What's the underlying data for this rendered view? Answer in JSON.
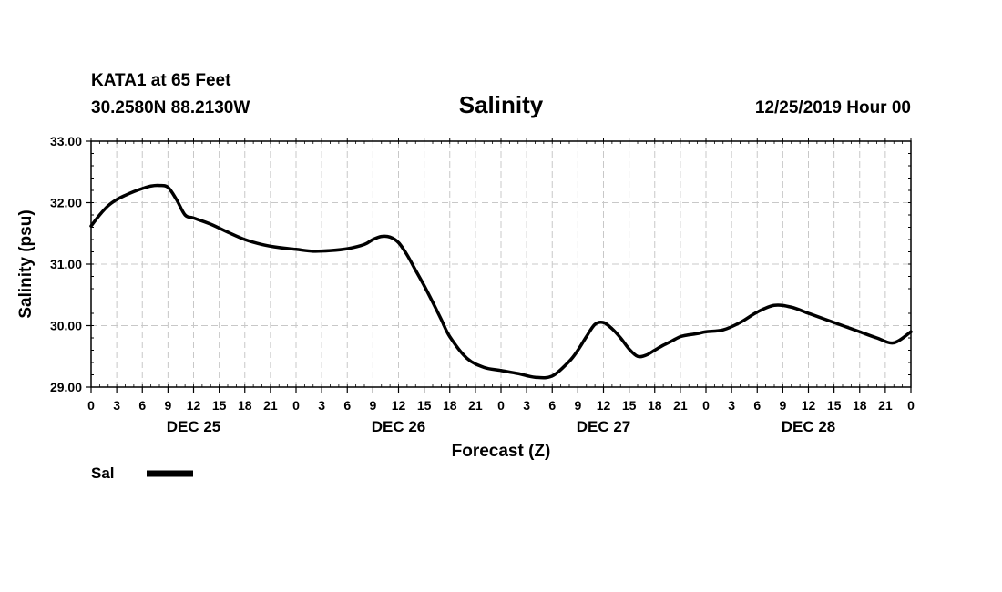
{
  "header": {
    "station": "KATA1 at 65 Feet",
    "coords": "30.2580N 88.2130W",
    "datetime": "12/25/2019 Hour 00"
  },
  "legend": {
    "label": "Sal",
    "color": "#000000"
  },
  "chart_data": {
    "type": "line",
    "title": "Salinity",
    "xlabel": "Forecast (Z)",
    "ylabel": "Salinity (psu)",
    "x_unit": "forecast hour",
    "xlim": [
      0,
      96
    ],
    "ylim": [
      29.0,
      33.0
    ],
    "ytick_values": [
      29.0,
      30.0,
      31.0,
      32.0,
      33.0
    ],
    "ytick_labels": [
      "29.00",
      "30.00",
      "31.00",
      "32.00",
      "33.00"
    ],
    "xtick_hours": [
      0,
      3,
      6,
      9,
      12,
      15,
      18,
      21,
      24,
      27,
      30,
      33,
      36,
      39,
      42,
      45,
      48,
      51,
      54,
      57,
      60,
      63,
      66,
      69,
      72,
      75,
      78,
      81,
      84,
      87,
      90,
      93,
      96
    ],
    "xtick_labels": [
      "0",
      "3",
      "6",
      "9",
      "12",
      "15",
      "18",
      "21",
      "0",
      "3",
      "6",
      "9",
      "12",
      "15",
      "18",
      "21",
      "0",
      "3",
      "6",
      "9",
      "12",
      "15",
      "18",
      "21",
      "0",
      "3",
      "6",
      "9",
      "12",
      "15",
      "18",
      "21",
      "0"
    ],
    "date_labels": [
      {
        "label": "DEC 25",
        "hour": 12
      },
      {
        "label": "DEC 26",
        "hour": 36
      },
      {
        "label": "DEC 27",
        "hour": 60
      },
      {
        "label": "DEC 28",
        "hour": 84
      }
    ],
    "grid": true,
    "series": [
      {
        "name": "Sal",
        "color": "#000000",
        "x": [
          0,
          1,
          2,
          3,
          4,
          5,
          6,
          7,
          8,
          9,
          10,
          11,
          12,
          14,
          16,
          18,
          20,
          22,
          24,
          26,
          28,
          30,
          32,
          33,
          34,
          35,
          36,
          37,
          38,
          39,
          40,
          41,
          42,
          44,
          46,
          48,
          50,
          52,
          54,
          56,
          57,
          58,
          59,
          60,
          61,
          62,
          63,
          64,
          65,
          66,
          67,
          68,
          69,
          70,
          71,
          72,
          74,
          76,
          78,
          80,
          82,
          84,
          86,
          88,
          90,
          92,
          94,
          96
        ],
        "values": [
          31.62,
          31.8,
          31.95,
          32.05,
          32.12,
          32.18,
          32.23,
          32.27,
          32.28,
          32.25,
          32.05,
          31.8,
          31.75,
          31.65,
          31.52,
          31.4,
          31.32,
          31.27,
          31.24,
          31.21,
          31.22,
          31.25,
          31.32,
          31.4,
          31.45,
          31.44,
          31.35,
          31.15,
          30.9,
          30.65,
          30.38,
          30.1,
          29.82,
          29.47,
          29.32,
          29.27,
          29.22,
          29.16,
          29.18,
          29.42,
          29.6,
          29.82,
          30.02,
          30.05,
          29.95,
          29.8,
          29.62,
          29.5,
          29.52,
          29.6,
          29.68,
          29.75,
          29.82,
          29.85,
          29.87,
          29.9,
          29.93,
          30.05,
          30.22,
          30.33,
          30.3,
          30.2,
          30.1,
          30.0,
          29.9,
          29.8,
          29.72,
          29.9
        ]
      }
    ]
  }
}
